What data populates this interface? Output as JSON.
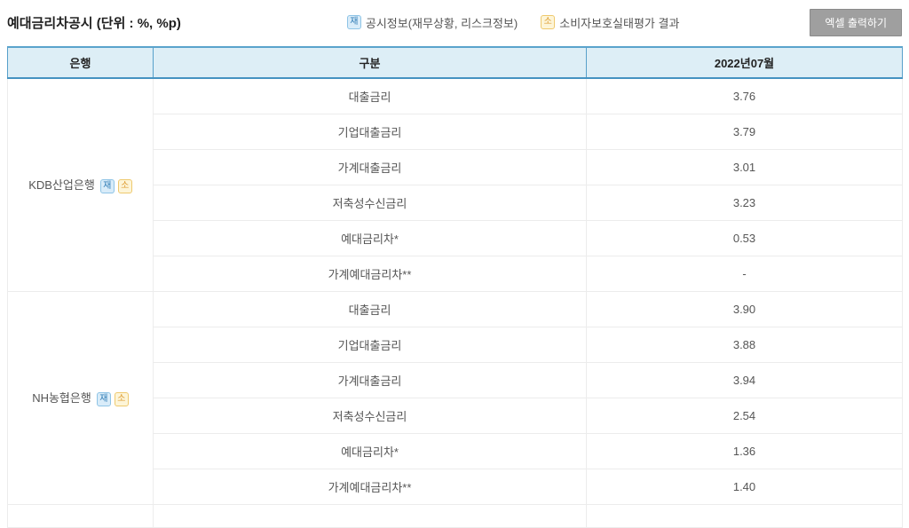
{
  "page": {
    "title": "예대금리차공시 (단위 : %, %p)",
    "legend": [
      {
        "icon": "재",
        "label": "공시정보(재무상황, 리스크정보)"
      },
      {
        "icon": "소",
        "label": "소비자보호실태평가 결과"
      }
    ],
    "excel_button": "엑셀 출력하기"
  },
  "colors": {
    "header_bg": "#ddeef6",
    "header_border": "#4593c1",
    "badge_jae_bg": "#d9ecf9",
    "badge_jae_text": "#2f7cb5",
    "badge_so_bg": "#fdf5d8",
    "badge_so_text": "#dd9b2f",
    "button_bg": "#9f9f9f"
  },
  "table": {
    "headers": [
      "은행",
      "구분",
      "2022년07월"
    ],
    "groups": [
      {
        "bank": "KDB산업은행",
        "badges": [
          "재",
          "소"
        ],
        "rows": [
          {
            "label": "대출금리",
            "value": "3.76"
          },
          {
            "label": "기업대출금리",
            "value": "3.79"
          },
          {
            "label": "가계대출금리",
            "value": "3.01"
          },
          {
            "label": "저축성수신금리",
            "value": "3.23"
          },
          {
            "label": "예대금리차*",
            "value": "0.53"
          },
          {
            "label": "가계예대금리차**",
            "value": "-"
          }
        ]
      },
      {
        "bank": "NH농협은행",
        "badges": [
          "재",
          "소"
        ],
        "rows": [
          {
            "label": "대출금리",
            "value": "3.90"
          },
          {
            "label": "기업대출금리",
            "value": "3.88"
          },
          {
            "label": "가계대출금리",
            "value": "3.94"
          },
          {
            "label": "저축성수신금리",
            "value": "2.54"
          },
          {
            "label": "예대금리차*",
            "value": "1.36"
          },
          {
            "label": "가계예대금리차**",
            "value": "1.40"
          }
        ]
      }
    ]
  }
}
